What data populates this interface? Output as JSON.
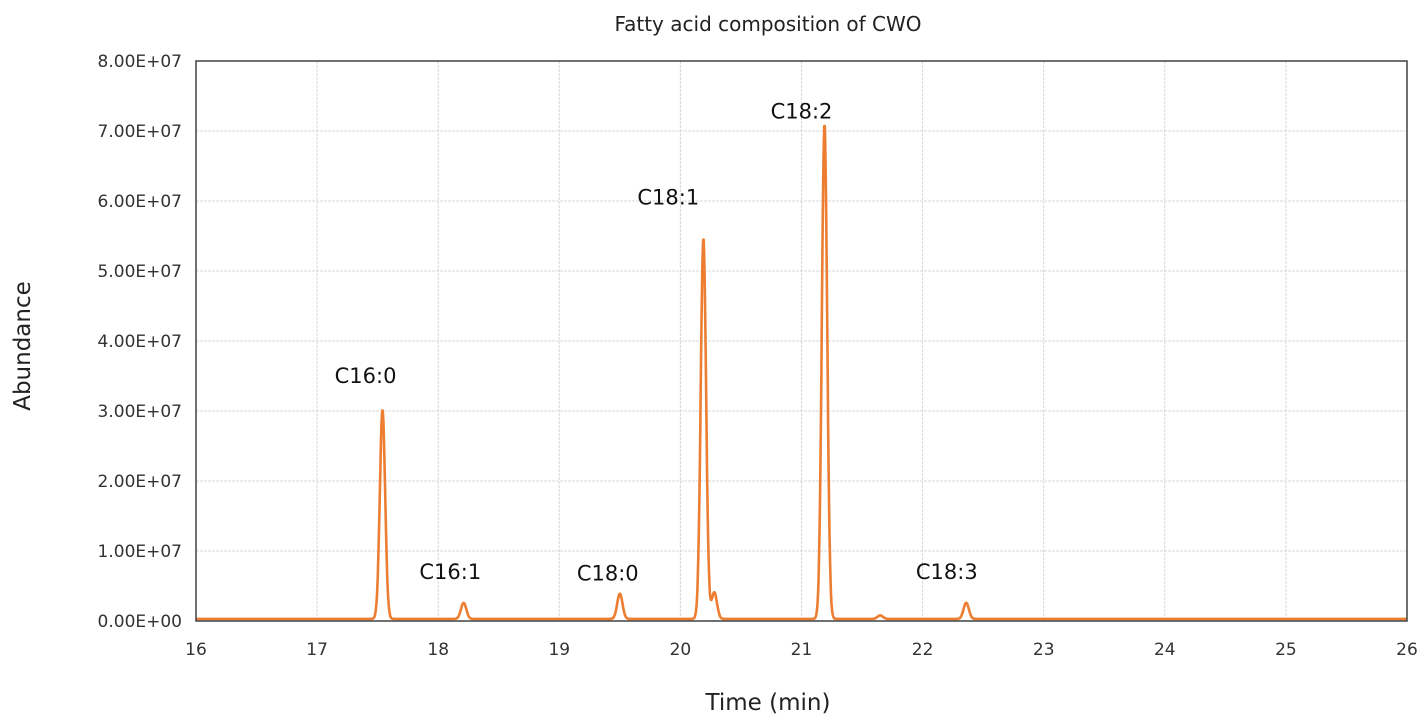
{
  "chart_data": {
    "type": "line",
    "title": "Fatty acid composition of CWO",
    "xlabel": "Time (min)",
    "ylabel": "Abundance",
    "xlim": [
      16,
      26
    ],
    "ylim": [
      0,
      80000000
    ],
    "x_ticks": [
      "16",
      "17",
      "18",
      "19",
      "20",
      "21",
      "22",
      "23",
      "24",
      "25",
      "26"
    ],
    "y_ticks": [
      "0.00E+00",
      "1.00E+07",
      "2.00E+07",
      "3.00E+07",
      "4.00E+07",
      "5.00E+07",
      "6.00E+07",
      "7.00E+07",
      "8.00E+07"
    ],
    "grid": true,
    "legend": "none",
    "series": [
      {
        "name": "CWO chromatogram",
        "color": "#ed7d31",
        "baseline": 300000,
        "peaks": [
          {
            "label": "C16:0",
            "x": 17.54,
            "y": 29800000
          },
          {
            "label": "C16:1",
            "x": 18.21,
            "y": 2300000
          },
          {
            "label": "C18:0",
            "x": 19.5,
            "y": 3600000
          },
          {
            "label": "C18:1",
            "x": 20.19,
            "y": 54400000
          },
          {
            "label": "",
            "x": 20.28,
            "y": 3800000
          },
          {
            "label": "C18:2",
            "x": 21.19,
            "y": 70700000
          },
          {
            "label": "",
            "x": 21.65,
            "y": 500000
          },
          {
            "label": "C18:3",
            "x": 22.36,
            "y": 2300000
          }
        ]
      }
    ],
    "annotations": [
      {
        "text": "C16:0",
        "x": 17.4,
        "y": 34000000
      },
      {
        "text": "C16:1",
        "x": 18.1,
        "y": 6000000
      },
      {
        "text": "C18:0",
        "x": 19.4,
        "y": 5800000
      },
      {
        "text": "C18:1",
        "x": 19.9,
        "y": 59500000
      },
      {
        "text": "C18:2",
        "x": 21.0,
        "y": 71800000
      },
      {
        "text": "C18:3",
        "x": 22.2,
        "y": 6000000
      }
    ]
  }
}
